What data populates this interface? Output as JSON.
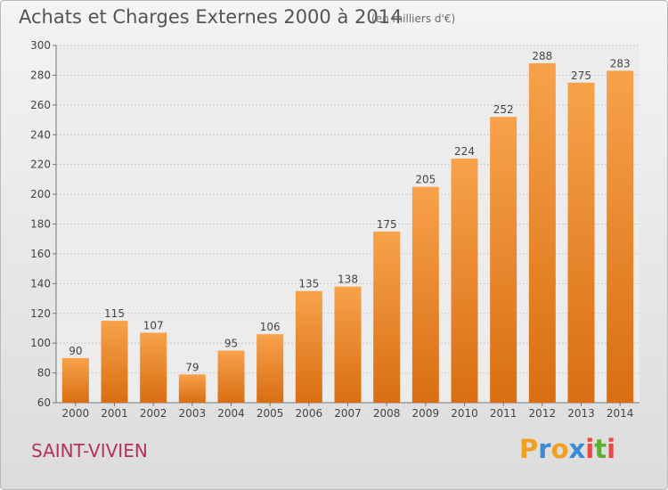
{
  "header": {
    "title": "Achats et Charges Externes 2000 à 2014",
    "unit": "(en milliers d'€)"
  },
  "footer": {
    "commune": "SAINT-VIVIEN",
    "logo": {
      "letters": [
        "P",
        "r",
        "o",
        "x",
        "i",
        "t",
        "i"
      ],
      "colors": [
        "#f0a020",
        "#3a8ad4",
        "#f0a020",
        "#3a8ad4",
        "#e84848",
        "#60b030",
        "#e84848"
      ]
    }
  },
  "colors": {
    "bar_light": "#f7a24b",
    "bar_dark": "#d96e12",
    "commune": "#b4325a"
  },
  "chart_data": {
    "type": "bar",
    "title": "Achats et Charges Externes 2000 à 2014",
    "subtitle": "(en milliers d'€)",
    "categories": [
      "2000",
      "2001",
      "2002",
      "2003",
      "2004",
      "2005",
      "2006",
      "2007",
      "2008",
      "2009",
      "2010",
      "2011",
      "2012",
      "2013",
      "2014"
    ],
    "values": [
      90,
      115,
      107,
      79,
      95,
      106,
      135,
      138,
      175,
      205,
      224,
      252,
      288,
      275,
      283
    ],
    "ylim": [
      60,
      300
    ],
    "yticks": [
      60,
      80,
      100,
      120,
      140,
      160,
      180,
      200,
      220,
      240,
      260,
      280,
      300
    ],
    "grid": true,
    "data_labels": true
  }
}
